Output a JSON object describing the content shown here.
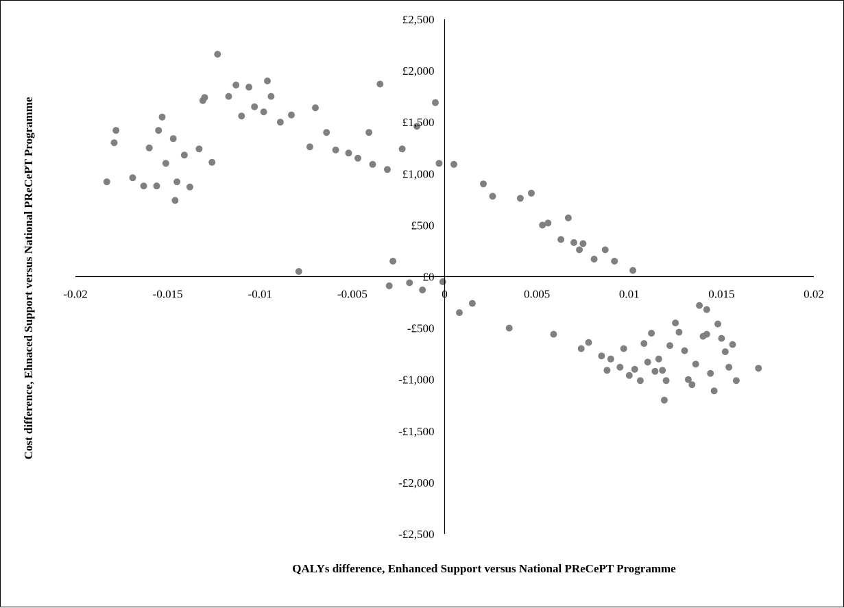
{
  "chart_data": {
    "type": "scatter",
    "title": "",
    "xlabel": "QALYs difference, Enhanced Support versus National PReCePT Programme",
    "ylabel": "Cost difference, Ehnaced Support versus National PReCePT Programme",
    "xlim": [
      -0.02,
      0.02
    ],
    "ylim": [
      -2500,
      2500
    ],
    "x_ticks": [
      "-0.02",
      "-0.015",
      "-0.01",
      "-0.005",
      "0",
      "0.005",
      "0.01",
      "0.015",
      "0.02"
    ],
    "x_tick_values": [
      -0.02,
      -0.015,
      -0.01,
      -0.005,
      0,
      0.005,
      0.01,
      0.015,
      0.02
    ],
    "y_ticks": [
      "£2,500",
      "£2,000",
      "£1,500",
      "£1,000",
      "£500",
      "£0",
      "-£500",
      "-£1,000",
      "-£1,500",
      "-£2,000",
      "-£2,500"
    ],
    "y_tick_values": [
      2500,
      2000,
      1500,
      1000,
      500,
      0,
      -500,
      -1000,
      -1500,
      -2000,
      -2500
    ],
    "grid": false,
    "legend": "none",
    "marker_color": "#808080",
    "series": [
      {
        "points": [
          [
            -0.0183,
            920
          ],
          [
            -0.0179,
            1300
          ],
          [
            -0.0178,
            1420
          ],
          [
            -0.0169,
            960
          ],
          [
            -0.0163,
            880
          ],
          [
            -0.016,
            1250
          ],
          [
            -0.0156,
            880
          ],
          [
            -0.0155,
            1420
          ],
          [
            -0.0153,
            1550
          ],
          [
            -0.0151,
            1100
          ],
          [
            -0.0147,
            1340
          ],
          [
            -0.0146,
            740
          ],
          [
            -0.0145,
            920
          ],
          [
            -0.0141,
            1180
          ],
          [
            -0.0138,
            870
          ],
          [
            -0.0133,
            1240
          ],
          [
            -0.0131,
            1710
          ],
          [
            -0.013,
            1740
          ],
          [
            -0.0126,
            1110
          ],
          [
            -0.0123,
            2160
          ],
          [
            -0.0117,
            1750
          ],
          [
            -0.0113,
            1860
          ],
          [
            -0.011,
            1560
          ],
          [
            -0.0106,
            1840
          ],
          [
            -0.0103,
            1650
          ],
          [
            -0.0098,
            1600
          ],
          [
            -0.0096,
            1900
          ],
          [
            -0.0094,
            1750
          ],
          [
            -0.0089,
            1500
          ],
          [
            -0.0083,
            1570
          ],
          [
            -0.0079,
            50
          ],
          [
            -0.0073,
            1260
          ],
          [
            -0.007,
            1640
          ],
          [
            -0.0064,
            1400
          ],
          [
            -0.0059,
            1230
          ],
          [
            -0.0052,
            1200
          ],
          [
            -0.0047,
            1150
          ],
          [
            -0.0041,
            1400
          ],
          [
            -0.0039,
            1090
          ],
          [
            -0.0035,
            1870
          ],
          [
            -0.0031,
            1040
          ],
          [
            -0.003,
            -90
          ],
          [
            -0.0028,
            150
          ],
          [
            -0.0023,
            1240
          ],
          [
            -0.0019,
            -60
          ],
          [
            -0.0015,
            1460
          ],
          [
            -0.0012,
            -130
          ],
          [
            -0.0005,
            1690
          ],
          [
            -0.0003,
            1100
          ],
          [
            -0.0001,
            -50
          ],
          [
            0.0005,
            1090
          ],
          [
            0.0008,
            -350
          ],
          [
            0.0015,
            -260
          ],
          [
            0.0021,
            900
          ],
          [
            0.0026,
            780
          ],
          [
            0.0035,
            -500
          ],
          [
            0.0041,
            760
          ],
          [
            0.0047,
            810
          ],
          [
            0.0053,
            500
          ],
          [
            0.0056,
            520
          ],
          [
            0.0059,
            -560
          ],
          [
            0.0063,
            360
          ],
          [
            0.0067,
            570
          ],
          [
            0.007,
            330
          ],
          [
            0.0073,
            260
          ],
          [
            0.0075,
            320
          ],
          [
            0.0074,
            -700
          ],
          [
            0.0078,
            -640
          ],
          [
            0.0081,
            170
          ],
          [
            0.0085,
            -770
          ],
          [
            0.0087,
            260
          ],
          [
            0.0088,
            -910
          ],
          [
            0.009,
            -800
          ],
          [
            0.0092,
            150
          ],
          [
            0.0095,
            -880
          ],
          [
            0.0097,
            -700
          ],
          [
            0.01,
            -960
          ],
          [
            0.0102,
            60
          ],
          [
            0.0103,
            -900
          ],
          [
            0.0106,
            -1010
          ],
          [
            0.0108,
            -650
          ],
          [
            0.011,
            -830
          ],
          [
            0.0112,
            -550
          ],
          [
            0.0114,
            -920
          ],
          [
            0.0116,
            -800
          ],
          [
            0.0118,
            -910
          ],
          [
            0.012,
            -1010
          ],
          [
            0.0119,
            -1200
          ],
          [
            0.0122,
            -670
          ],
          [
            0.0125,
            -450
          ],
          [
            0.0127,
            -540
          ],
          [
            0.013,
            -720
          ],
          [
            0.0132,
            -1000
          ],
          [
            0.0134,
            -1050
          ],
          [
            0.0136,
            -850
          ],
          [
            0.014,
            -580
          ],
          [
            0.0142,
            -560
          ],
          [
            0.0144,
            -940
          ],
          [
            0.0146,
            -1110
          ],
          [
            0.0148,
            -460
          ],
          [
            0.015,
            -600
          ],
          [
            0.0152,
            -730
          ],
          [
            0.0154,
            -880
          ],
          [
            0.0156,
            -660
          ],
          [
            0.0158,
            -1010
          ],
          [
            0.017,
            -890
          ],
          [
            0.0138,
            -280
          ],
          [
            0.0142,
            -320
          ]
        ]
      }
    ],
    "cloud": {
      "description": "",
      "n_points": 0
    }
  }
}
